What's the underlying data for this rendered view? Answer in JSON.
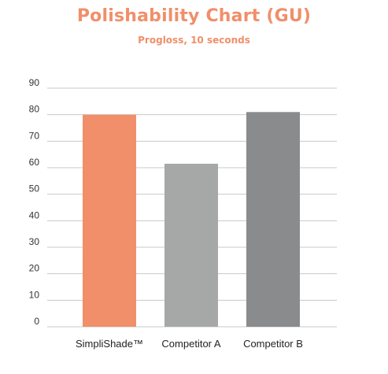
{
  "chart_data": {
    "type": "bar",
    "title": "Polishability Chart (GU)",
    "subtitle": "Progloss, 10 seconds",
    "categories": [
      "SimpliShade™",
      "Competitor A",
      "Competitor B"
    ],
    "values": [
      80,
      61.5,
      81
    ],
    "colors": [
      "#f08f6a",
      "#a6a8a7",
      "#8a8b8d"
    ],
    "ylim": [
      0,
      90
    ],
    "yticks": [
      "0",
      "10",
      "20",
      "30",
      "40",
      "50",
      "60",
      "70",
      "80",
      "90"
    ],
    "grid": true,
    "legend": "none"
  }
}
